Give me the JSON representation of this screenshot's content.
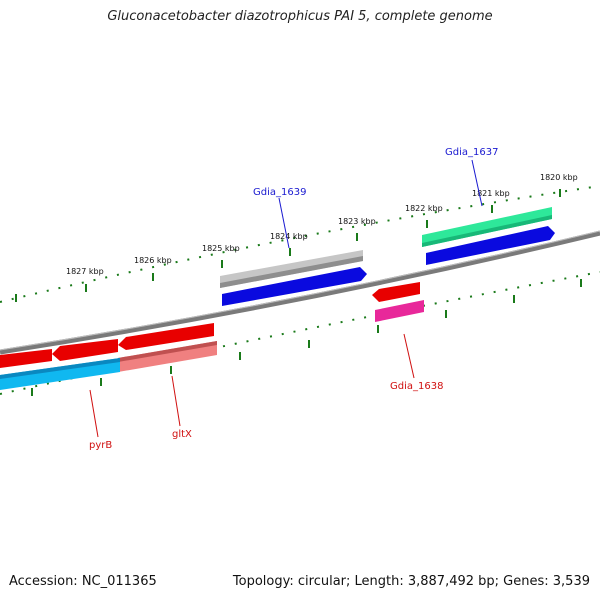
{
  "title": "Gluconacetobacter diazotrophicus PAI 5, complete genome",
  "footer": {
    "accession": "Accession: NC_011365",
    "summary": "Topology: circular; Length: 3,887,492 bp; Genes: 3,539"
  },
  "ticks": [
    "1827 kbp",
    "1826 kbp",
    "1825 kbp",
    "1824 kbp",
    "1823 kbp",
    "1822 kbp",
    "1821 kbp",
    "1820 kbp"
  ],
  "genes": {
    "gdia_1637": "Gdia_1637",
    "gdia_1639": "Gdia_1639",
    "gdia_1638": "Gdia_1638",
    "pyrB": "pyrB",
    "gltX": "gltX"
  },
  "colors": {
    "tick": "#1a7a1a",
    "backbone": "#8a8a8a",
    "forward_cds": "#0a0adf",
    "reverse_cds": "#e80000",
    "reverse_gene": "#f08080",
    "forward_gene": "#b8b8b8",
    "gene_green": "#2ee89a",
    "gene_pink": "#e8289a",
    "gene_cyan": "#10b8f0",
    "label_blue": "#1a1ad0",
    "label_red": "#d01010"
  }
}
